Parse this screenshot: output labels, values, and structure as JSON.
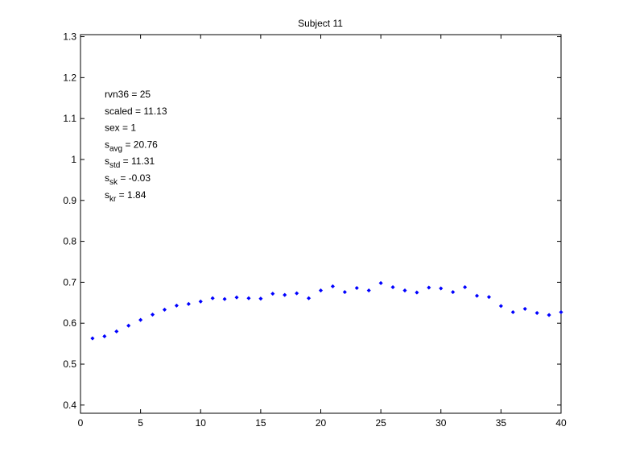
{
  "chart_data": {
    "type": "scatter",
    "title": "Subject 11",
    "xlabel": "",
    "ylabel": "",
    "xlim": [
      0,
      40
    ],
    "ylim": [
      0.38,
      1.305
    ],
    "xticks": [
      "0",
      "5",
      "10",
      "15",
      "20",
      "25",
      "30",
      "35",
      "40"
    ],
    "yticks": [
      "0.4",
      "0.5",
      "0.6",
      "0.7",
      "0.8",
      "0.9",
      "1",
      "1.1",
      "1.2",
      "1.3"
    ],
    "grid": false,
    "marker_color": "#0000ff",
    "x": [
      1,
      2,
      3,
      4,
      5,
      6,
      7,
      8,
      9,
      10,
      11,
      12,
      13,
      14,
      15,
      16,
      17,
      18,
      19,
      20,
      21,
      22,
      23,
      24,
      25,
      26,
      27,
      28,
      29,
      30,
      31,
      32,
      33,
      34,
      35,
      36,
      37,
      38,
      39,
      40
    ],
    "y": [
      0.563,
      0.568,
      0.58,
      0.594,
      0.608,
      0.621,
      0.633,
      0.643,
      0.647,
      0.653,
      0.661,
      0.659,
      0.663,
      0.661,
      0.66,
      0.672,
      0.669,
      0.673,
      0.661,
      0.68,
      0.69,
      0.676,
      0.686,
      0.68,
      0.698,
      0.688,
      0.68,
      0.675,
      0.687,
      0.685,
      0.676,
      0.688,
      0.667,
      0.664,
      0.642,
      0.627,
      0.635,
      0.625,
      0.62,
      0.627
    ],
    "annotations": [
      {
        "base": "rvn36",
        "sub": "",
        "text": " = 25"
      },
      {
        "base": "scaled",
        "sub": "",
        "text": " = 11.13"
      },
      {
        "base": "sex",
        "sub": "",
        "text": "   = 1"
      },
      {
        "base": "s",
        "sub": "avg",
        "text": " = 20.76"
      },
      {
        "base": "s",
        "sub": "std",
        "text": " = 11.31"
      },
      {
        "base": "s",
        "sub": "sk",
        "text": " = -0.03"
      },
      {
        "base": "s",
        "sub": "kr",
        "text": " = 1.84"
      }
    ]
  }
}
